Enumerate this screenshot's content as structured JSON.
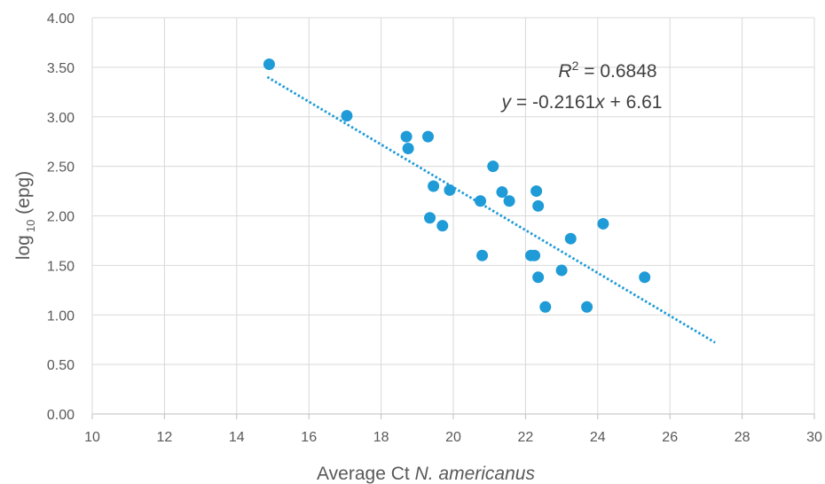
{
  "chart_data": {
    "type": "scatter",
    "title": "",
    "xlabel_prefix": "Average Ct ",
    "xlabel_italic": "N. americanus",
    "ylabel_main": "log",
    "ylabel_sub": "10",
    "ylabel_suffix": " (epg)",
    "xlim": [
      10,
      30
    ],
    "ylim": [
      0,
      4
    ],
    "x_ticks": [
      "10",
      "12",
      "14",
      "16",
      "18",
      "20",
      "22",
      "24",
      "26",
      "28",
      "30"
    ],
    "y_ticks": [
      "0.00",
      "0.50",
      "1.00",
      "1.50",
      "2.00",
      "2.50",
      "3.00",
      "3.50",
      "4.00"
    ],
    "grid": true,
    "legend": "none",
    "marker_color": "#1f9bd7",
    "trend_color": "#1f9bd7",
    "trendline": {
      "slope": -0.2161,
      "intercept": 6.61,
      "x_start": 14.85,
      "x_end": 27.25
    },
    "annotation_r2_symbol": "R",
    "annotation_r2_exp": "2",
    "annotation_r2_value": " = 0.6848",
    "annotation_eq_y": "y",
    "annotation_eq_mid": " = -0.2161",
    "annotation_eq_x": "x",
    "annotation_eq_end": " + 6.61",
    "points": [
      {
        "x": 14.9,
        "y": 3.53
      },
      {
        "x": 17.05,
        "y": 3.01
      },
      {
        "x": 18.7,
        "y": 2.8
      },
      {
        "x": 18.75,
        "y": 2.68
      },
      {
        "x": 19.3,
        "y": 2.8
      },
      {
        "x": 19.35,
        "y": 1.98
      },
      {
        "x": 19.45,
        "y": 2.3
      },
      {
        "x": 19.7,
        "y": 1.9
      },
      {
        "x": 19.9,
        "y": 2.26
      },
      {
        "x": 20.75,
        "y": 2.15
      },
      {
        "x": 20.8,
        "y": 1.6
      },
      {
        "x": 21.1,
        "y": 2.5
      },
      {
        "x": 21.35,
        "y": 2.24
      },
      {
        "x": 21.55,
        "y": 2.15
      },
      {
        "x": 22.15,
        "y": 1.6
      },
      {
        "x": 22.25,
        "y": 1.6
      },
      {
        "x": 22.3,
        "y": 2.25
      },
      {
        "x": 22.35,
        "y": 2.1
      },
      {
        "x": 22.35,
        "y": 1.38
      },
      {
        "x": 22.55,
        "y": 1.08
      },
      {
        "x": 23.0,
        "y": 1.45
      },
      {
        "x": 23.25,
        "y": 1.77
      },
      {
        "x": 23.7,
        "y": 1.08
      },
      {
        "x": 24.15,
        "y": 1.92
      },
      {
        "x": 25.3,
        "y": 1.38
      }
    ]
  }
}
